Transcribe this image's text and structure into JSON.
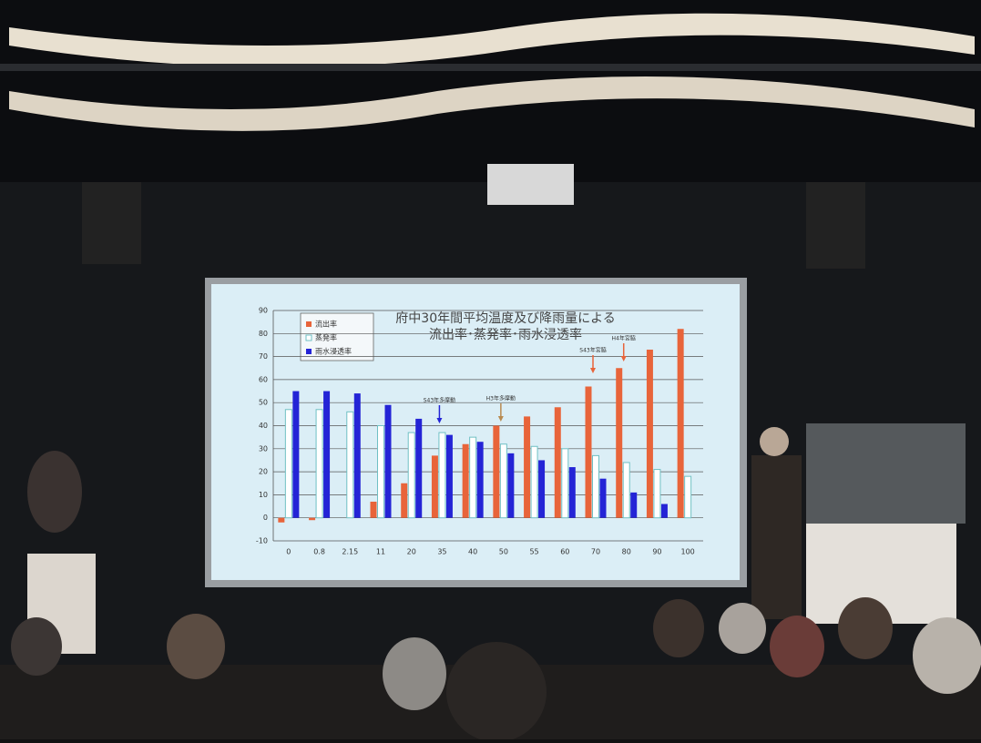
{
  "chart_data": {
    "type": "bar",
    "title": "府中30年間平均温度及び降雨量による",
    "subtitle": "流出率･蒸発率･雨水浸透率",
    "categories": [
      "0",
      "0.8",
      "2.15",
      "11",
      "20",
      "35",
      "40",
      "50",
      "55",
      "60",
      "70",
      "80",
      "90",
      "100"
    ],
    "series": [
      {
        "name": "流出率",
        "color": "#e8643a",
        "values": [
          -2,
          -1,
          0,
          7,
          15,
          27,
          32,
          40,
          44,
          48,
          57,
          65,
          73,
          82
        ]
      },
      {
        "name": "蒸発率",
        "color": "#ffffff",
        "values": [
          47,
          47,
          46,
          40,
          37,
          37,
          35,
          32,
          31,
          30,
          27,
          24,
          21,
          18
        ]
      },
      {
        "name": "雨水浸透率",
        "color": "#2424d6",
        "values": [
          55,
          55,
          54,
          49,
          43,
          36,
          33,
          28,
          25,
          22,
          17,
          11,
          6,
          0
        ]
      }
    ],
    "ylim": [
      -10,
      90
    ],
    "yticks": [
      -10,
      0,
      10,
      20,
      30,
      40,
      50,
      60,
      70,
      80,
      90
    ],
    "grid": true,
    "annotations": [
      "S43年多摩動",
      "H3年多摩動",
      "S43年宮脇",
      "H4年宮脇"
    ]
  }
}
